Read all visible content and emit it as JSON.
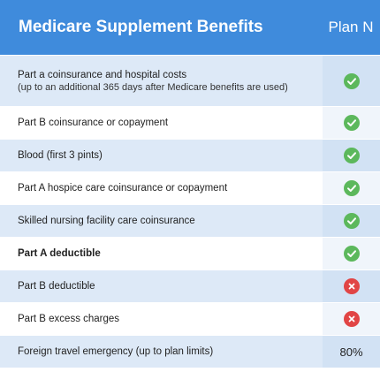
{
  "header": {
    "title": "Medicare Supplement Benefits",
    "plan": "Plan N"
  },
  "rows": [
    {
      "label": "Part a coinsurance and hospital costs",
      "sub": "(up to an additional 365 days after Medicare benefits are used)",
      "value": "check"
    },
    {
      "label": "Part B coinsurance or copayment",
      "value": "check"
    },
    {
      "label": "Blood (first 3 pints)",
      "value": "check"
    },
    {
      "label": "Part A hospice care coinsurance or copayment",
      "value": "check"
    },
    {
      "label": "Skilled nursing facility care coinsurance",
      "value": "check"
    },
    {
      "label": "Part A deductible",
      "value": "check"
    },
    {
      "label": "Part B deductible",
      "value": "x"
    },
    {
      "label": "Part B excess charges",
      "value": "x"
    },
    {
      "label": "Foreign travel emergency (up to plan limits)",
      "value": "80%"
    }
  ],
  "colors": {
    "header_bg": "#3f8bdc",
    "check": "#5cb85c",
    "x": "#e14545",
    "row_blue": "#dde9f7"
  },
  "icons": {
    "check": "check-icon",
    "x": "x-icon"
  }
}
